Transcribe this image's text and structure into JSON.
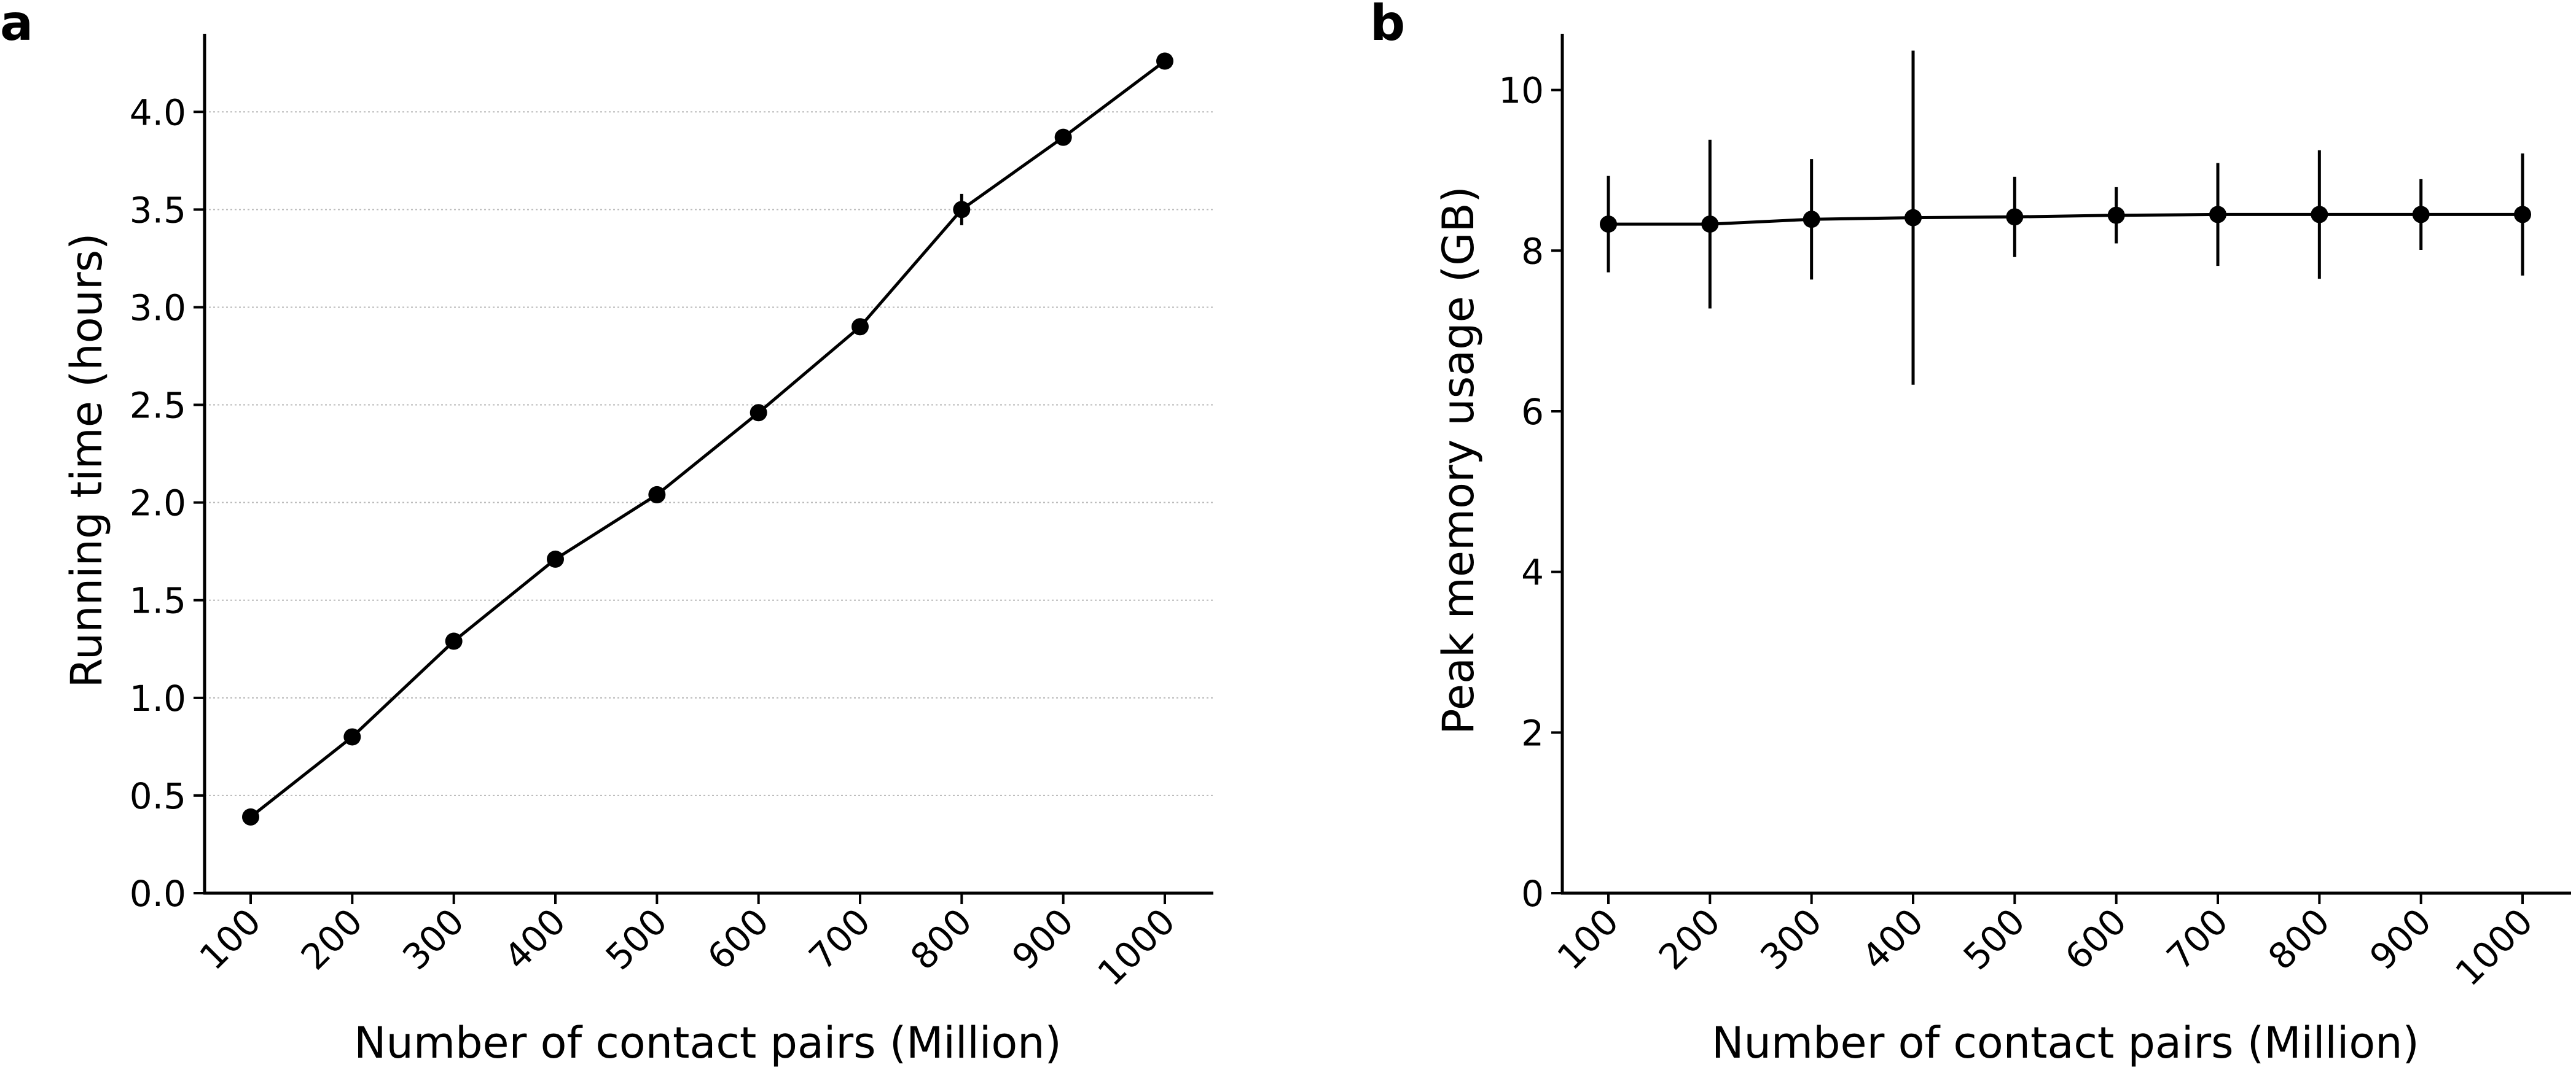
{
  "colors": {
    "series": "#000000",
    "grid": "#b9b9b9",
    "background": "#ffffff"
  },
  "chart_data": [
    {
      "panel_label": "a",
      "type": "line",
      "title": "",
      "xlabel": "Number of contact pairs (Million)",
      "ylabel": "Running time (hours)",
      "categories": [
        "100",
        "200",
        "300",
        "400",
        "500",
        "600",
        "700",
        "800",
        "900",
        "1000"
      ],
      "x": [
        100,
        200,
        300,
        400,
        500,
        600,
        700,
        800,
        900,
        1000
      ],
      "values": [
        0.39,
        0.8,
        1.29,
        1.71,
        2.04,
        2.46,
        2.9,
        3.5,
        3.87,
        4.26
      ],
      "error": [
        0.0,
        0.0,
        0.0,
        0.0,
        0.04,
        0.0,
        0.0,
        0.08,
        0.0,
        0.0
      ],
      "ylim": [
        0,
        4.4
      ],
      "yticks": [
        0.0,
        0.5,
        1.0,
        1.5,
        2.0,
        2.5,
        3.0,
        3.5,
        4.0
      ],
      "ytick_labels": [
        "0.0",
        "0.5",
        "1.0",
        "1.5",
        "2.0",
        "2.5",
        "3.0",
        "3.5",
        "4.0"
      ],
      "grid": "horizontal dotted"
    },
    {
      "panel_label": "b",
      "type": "line",
      "title": "",
      "xlabel": "Number of contact pairs (Million)",
      "ylabel": "Peak memory usage (GB)",
      "categories": [
        "100",
        "200",
        "300",
        "400",
        "500",
        "600",
        "700",
        "800",
        "900",
        "1000"
      ],
      "x": [
        100,
        200,
        300,
        400,
        500,
        600,
        700,
        800,
        900,
        1000
      ],
      "values": [
        8.33,
        8.33,
        8.39,
        8.41,
        8.42,
        8.44,
        8.45,
        8.45,
        8.45,
        8.45
      ],
      "error": [
        0.6,
        1.05,
        0.75,
        2.08,
        0.5,
        0.35,
        0.64,
        0.8,
        0.44,
        0.76
      ],
      "ylim": [
        0,
        10.7
      ],
      "yticks": [
        0,
        2,
        4,
        6,
        8,
        10
      ],
      "ytick_labels": [
        "0",
        "2",
        "4",
        "6",
        "8",
        "10"
      ],
      "grid": "none"
    }
  ]
}
